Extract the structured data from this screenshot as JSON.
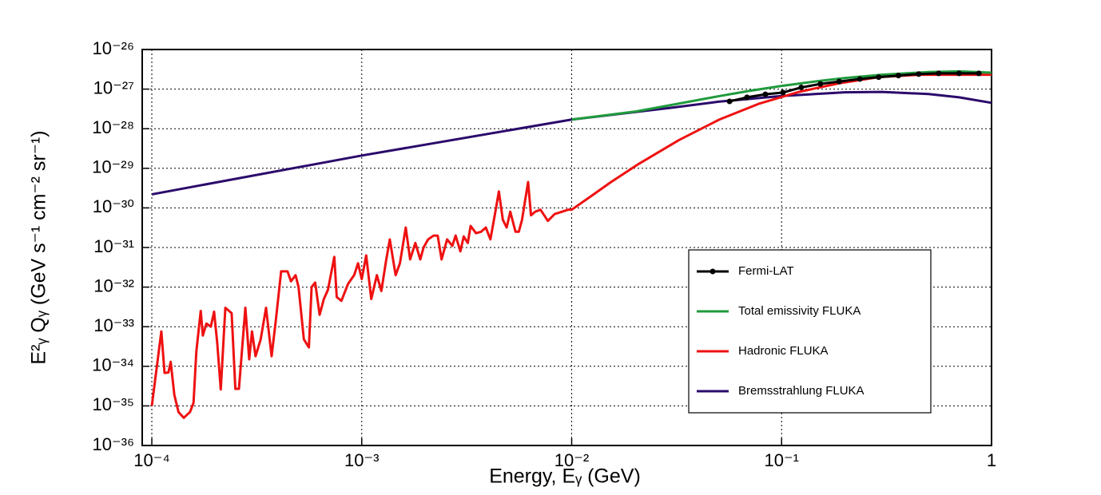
{
  "chart_data": {
    "type": "line",
    "x_label": "Energy, Eᵧ (GeV)",
    "y_label": "E²ᵧ Qᵧ (GeV s⁻¹ cm⁻² sr⁻¹)",
    "log_x": true,
    "log_y": true,
    "grid": true,
    "legend": "lower right",
    "xlim": [
      9e-05,
      1
    ],
    "ylim": [
      1e-36,
      1e-26
    ],
    "xticks": [
      {
        "value": 0.0001,
        "label": "10⁻⁴"
      },
      {
        "value": 0.001,
        "label": "10⁻³"
      },
      {
        "value": 0.01,
        "label": "10⁻²"
      },
      {
        "value": 0.1,
        "label": "10⁻¹"
      },
      1
    ],
    "yticks": [
      {
        "value": 1e-36,
        "label": "10⁻³⁶"
      },
      {
        "value": 1e-35,
        "label": "10⁻³⁵"
      },
      {
        "value": 1e-34,
        "label": "10⁻³⁴"
      },
      {
        "value": 1e-33,
        "label": "10⁻³³"
      },
      {
        "value": 1e-32,
        "label": "10⁻³²"
      },
      {
        "value": 1e-31,
        "label": "10⁻³¹"
      },
      {
        "value": 1e-30,
        "label": "10⁻³⁰"
      },
      {
        "value": 1e-29,
        "label": "10⁻²⁹"
      },
      {
        "value": 1e-28,
        "label": "10⁻²⁸"
      },
      {
        "value": 1e-27,
        "label": "10⁻²⁷"
      },
      {
        "value": 1e-26,
        "label": "10⁻²⁶"
      }
    ],
    "series": [
      {
        "name": "Fermi-LAT",
        "color": "#000000",
        "marker": true,
        "x": [
          0.0565,
          0.0684,
          0.0837,
          0.1016,
          0.124,
          0.153,
          0.188,
          0.236,
          0.29,
          0.36,
          0.45,
          0.56,
          0.7,
          0.87
        ],
        "values": [
          4.9e-28,
          6.2e-28,
          7.4e-28,
          8.2e-28,
          1.1e-27,
          1.35e-27,
          1.55e-27,
          1.8e-27,
          2e-27,
          2.2e-27,
          2.4e-27,
          2.5e-27,
          2.5e-27,
          2.5e-27
        ]
      },
      {
        "name": "Total emissivity FLUKA",
        "color": "#1f9a3c",
        "marker": false,
        "x": [
          0.01,
          0.02,
          0.03,
          0.05,
          0.07,
          0.1,
          0.15,
          0.2,
          0.3,
          0.5,
          0.7,
          1
        ],
        "values": [
          1.7e-28,
          2.7e-28,
          4e-28,
          6.6e-28,
          9e-28,
          1.2e-27,
          1.6e-27,
          1.9e-27,
          2.3e-27,
          2.7e-27,
          2.8e-27,
          2.6e-27
        ]
      },
      {
        "name": "Hadronic FLUKA",
        "color": "#ee1111",
        "marker": false,
        "x": [
          0.0001,
          0.000111,
          0.000115,
          0.00012,
          0.000123,
          0.000128,
          0.000134,
          0.000142,
          0.000152,
          0.000158,
          0.000163,
          0.000171,
          0.000175,
          0.000182,
          0.000191,
          0.000198,
          0.000205,
          0.000213,
          0.000224,
          0.00024,
          0.00025,
          0.00026,
          0.000279,
          0.000291,
          0.0003,
          0.000312,
          0.00033,
          0.00035,
          0.000372,
          0.00039,
          0.000413,
          0.000443,
          0.00046,
          0.000484,
          0.0005,
          0.00053,
          0.00056,
          0.000577,
          0.0006,
          0.00063,
          0.00066,
          0.00069,
          0.00074,
          0.00076,
          0.0008,
          0.00086,
          0.00092,
          0.00096,
          0.001,
          0.00105,
          0.00111,
          0.00118,
          0.00124,
          0.0013,
          0.00136,
          0.00145,
          0.00152,
          0.00162,
          0.0017,
          0.0018,
          0.0019,
          0.00197,
          0.00207,
          0.0022,
          0.0023,
          0.0024,
          0.00255,
          0.0027,
          0.0028,
          0.00295,
          0.00306,
          0.0032,
          0.0033,
          0.0035,
          0.0037,
          0.0039,
          0.0041,
          0.0043,
          0.0045,
          0.0047,
          0.0049,
          0.0051,
          0.0054,
          0.0056,
          0.0058,
          0.0062,
          0.0064,
          0.0067,
          0.0071,
          0.0074,
          0.0077,
          0.0083,
          0.009,
          0.0096,
          0.01,
          0.0124,
          0.0154,
          0.0209,
          0.0325,
          0.0505,
          0.0783,
          0.121,
          0.187,
          0.29,
          0.45,
          0.7,
          1
        ],
        "values": [
          1e-35,
          7.6e-34,
          6.8e-35,
          7e-35,
          1.3e-34,
          1.9e-35,
          7e-36,
          5e-36,
          7e-36,
          1.2e-35,
          2.4e-34,
          2.5e-33,
          6e-34,
          1.2e-33,
          1e-33,
          2.4e-33,
          3.8e-34,
          2.6e-35,
          3e-33,
          2.2e-33,
          2.7e-35,
          2.7e-35,
          3e-33,
          1.5e-34,
          7.6e-34,
          1.8e-34,
          4.8e-34,
          3e-33,
          1.8e-34,
          1.5e-33,
          2.5e-32,
          2.5e-32,
          1.4e-32,
          2e-32,
          1e-32,
          4.8e-34,
          3e-34,
          1e-32,
          1.3e-32,
          2e-33,
          5e-33,
          8.5e-33,
          5.8e-32,
          5.6e-33,
          4.5e-33,
          1.2e-32,
          2e-32,
          4e-32,
          1.6e-32,
          6.3e-32,
          5e-33,
          2e-32,
          8e-33,
          4e-32,
          1.6e-31,
          2e-32,
          4e-32,
          3.2e-31,
          5e-32,
          1.3e-31,
          5e-32,
          1e-31,
          1.6e-31,
          2e-31,
          2e-31,
          5e-32,
          1.6e-31,
          1.1e-31,
          2e-31,
          8e-32,
          1.9e-31,
          1.3e-31,
          3.5e-31,
          2.3e-31,
          2.5e-31,
          3.2e-31,
          1.6e-31,
          6.5e-31,
          2.6e-30,
          5e-31,
          3.2e-31,
          8e-31,
          2.5e-31,
          2.5e-31,
          5e-31,
          4.5e-30,
          6.5e-31,
          8e-31,
          9e-31,
          6.5e-31,
          4.7e-31,
          7e-31,
          8e-31,
          9e-31,
          9e-31,
          2e-30,
          4.5e-30,
          1.3e-29,
          5.2e-29,
          1.7e-28,
          4.3e-28,
          8.5e-28,
          1.4e-27,
          2e-27,
          2.3e-27,
          2.3e-27,
          2.3e-27
        ]
      },
      {
        "name": "Bremsstrahlung FLUKA",
        "color": "#2b0a6b",
        "marker": false,
        "x": [
          0.0001,
          0.001,
          0.01,
          0.03,
          0.05,
          0.1,
          0.2,
          0.3,
          0.5,
          0.7,
          1
        ],
        "values": [
          2.2e-30,
          2.1e-29,
          1.7e-28,
          3.4e-28,
          4.8e-28,
          6.7e-28,
          8.3e-28,
          8.5e-28,
          7.5e-28,
          6.2e-28,
          4.5e-28
        ]
      }
    ]
  }
}
